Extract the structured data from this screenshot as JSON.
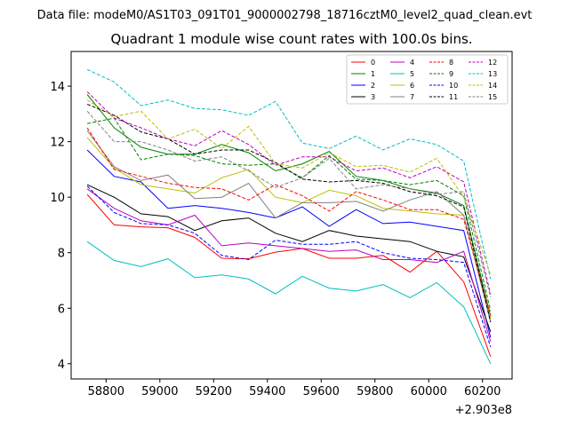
{
  "chart_data": {
    "type": "line",
    "suptitle": "Data file: modeM0/AS1T03_091T01_9000002798_18716cztM0_level2_quad_clean.evt",
    "title": "Quadrant 1 module wise count rates with 100.0s bins.",
    "x_offset_text": "+2.903e8",
    "xlim": [
      58670,
      60310
    ],
    "ylim": [
      3.45,
      15.25
    ],
    "x_ticks": [
      58800,
      59000,
      59200,
      59400,
      59600,
      59800,
      60000,
      60200
    ],
    "x_tick_labels": [
      "58800",
      "59000",
      "59200",
      "59400",
      "59600",
      "59800",
      "60000",
      "60200"
    ],
    "y_ticks": [
      4,
      6,
      8,
      10,
      12,
      14
    ],
    "y_tick_labels": [
      "4",
      "6",
      "8",
      "10",
      "12",
      "14"
    ],
    "x": [
      58730,
      58830,
      58930,
      59030,
      59130,
      59230,
      59330,
      59430,
      59530,
      59630,
      59730,
      59830,
      59930,
      60030,
      60130,
      60230
    ],
    "series": [
      {
        "name": "0",
        "color": "#ff0000",
        "dash": "solid",
        "values": [
          10.1,
          9.0,
          8.93,
          8.9,
          8.55,
          7.8,
          7.78,
          8.02,
          8.15,
          7.8,
          7.8,
          7.9,
          7.3,
          8.05,
          6.95,
          4.25
        ]
      },
      {
        "name": "1",
        "color": "#008000",
        "dash": "solid",
        "values": [
          13.7,
          12.5,
          11.8,
          11.55,
          11.55,
          11.9,
          11.6,
          10.95,
          11.2,
          11.65,
          10.75,
          10.6,
          10.3,
          10.15,
          9.7,
          5.7
        ]
      },
      {
        "name": "2",
        "color": "#0000ff",
        "dash": "solid",
        "values": [
          11.7,
          10.75,
          10.55,
          9.6,
          9.7,
          9.6,
          9.45,
          9.25,
          9.65,
          8.95,
          9.55,
          9.05,
          9.1,
          8.95,
          8.8,
          4.95
        ]
      },
      {
        "name": "3",
        "color": "#000000",
        "dash": "solid",
        "values": [
          10.45,
          10.0,
          9.4,
          9.3,
          8.8,
          9.15,
          9.25,
          8.7,
          8.4,
          8.8,
          8.6,
          8.5,
          8.4,
          8.05,
          7.85,
          5.15
        ]
      },
      {
        "name": "4",
        "color": "#bf00bf",
        "dash": "solid",
        "values": [
          10.3,
          9.6,
          9.15,
          9.0,
          9.35,
          8.25,
          8.35,
          8.25,
          8.15,
          8.05,
          8.1,
          7.75,
          7.75,
          7.65,
          8.05,
          4.8
        ]
      },
      {
        "name": "5",
        "color": "#00bfbf",
        "dash": "solid",
        "values": [
          8.4,
          7.72,
          7.5,
          7.78,
          7.1,
          7.2,
          7.05,
          6.52,
          7.15,
          6.72,
          6.62,
          6.85,
          6.38,
          6.92,
          6.05,
          4.0
        ]
      },
      {
        "name": "6",
        "color": "#bfbf00",
        "dash": "solid",
        "values": [
          12.15,
          11.05,
          10.45,
          10.3,
          10.15,
          10.7,
          11.0,
          10.0,
          9.8,
          10.25,
          10.05,
          9.6,
          9.5,
          9.4,
          9.35,
          5.6
        ]
      },
      {
        "name": "7",
        "color": "#808080",
        "dash": "solid",
        "values": [
          12.4,
          11.1,
          10.6,
          10.8,
          9.95,
          10.0,
          10.5,
          9.25,
          9.8,
          9.8,
          9.85,
          9.5,
          9.9,
          10.2,
          9.35,
          5.5
        ]
      },
      {
        "name": "8",
        "color": "#ff0000",
        "dash": "dashed",
        "values": [
          12.5,
          11.0,
          10.75,
          10.5,
          10.35,
          10.3,
          9.9,
          10.45,
          10.05,
          9.5,
          10.2,
          9.9,
          9.55,
          9.55,
          9.2,
          5.75
        ]
      },
      {
        "name": "9",
        "color": "#008000",
        "dash": "dashed",
        "values": [
          12.65,
          12.85,
          11.35,
          11.55,
          11.5,
          11.2,
          11.15,
          11.2,
          10.7,
          11.5,
          10.65,
          10.6,
          10.45,
          10.6,
          10.05,
          5.9
        ]
      },
      {
        "name": "10",
        "color": "#0000ff",
        "dash": "dashed",
        "values": [
          10.4,
          9.45,
          9.05,
          9.0,
          8.7,
          7.9,
          7.75,
          8.45,
          8.3,
          8.3,
          8.4,
          8.0,
          7.8,
          7.75,
          7.65,
          4.6
        ]
      },
      {
        "name": "11",
        "color": "#000000",
        "dash": "dashed",
        "values": [
          13.35,
          12.95,
          12.35,
          12.1,
          11.55,
          11.7,
          11.7,
          11.25,
          10.65,
          10.55,
          10.6,
          10.5,
          10.2,
          10.05,
          9.65,
          5.5
        ]
      },
      {
        "name": "12",
        "color": "#bf00bf",
        "dash": "dashed",
        "values": [
          13.8,
          12.85,
          12.5,
          12.1,
          11.85,
          12.4,
          11.9,
          11.15,
          11.45,
          11.45,
          10.95,
          11.05,
          10.7,
          11.1,
          10.55,
          6.5
        ]
      },
      {
        "name": "13",
        "color": "#00bfbf",
        "dash": "dashed",
        "values": [
          14.6,
          14.15,
          13.3,
          13.5,
          13.2,
          13.15,
          12.95,
          13.45,
          11.95,
          11.75,
          12.2,
          11.7,
          12.1,
          11.9,
          11.3,
          7.05
        ]
      },
      {
        "name": "14",
        "color": "#bfbf00",
        "dash": "dashed",
        "values": [
          13.5,
          12.9,
          13.1,
          12.1,
          12.45,
          11.75,
          12.55,
          11.2,
          11.05,
          11.6,
          11.1,
          11.15,
          10.9,
          11.4,
          10.0,
          7.2
        ]
      },
      {
        "name": "15",
        "color": "#808080",
        "dash": "dashed",
        "values": [
          13.1,
          12.0,
          12.0,
          11.7,
          11.3,
          11.45,
          10.95,
          10.35,
          10.7,
          11.4,
          10.3,
          10.45,
          10.3,
          10.1,
          10.2,
          6.4
        ]
      }
    ]
  }
}
